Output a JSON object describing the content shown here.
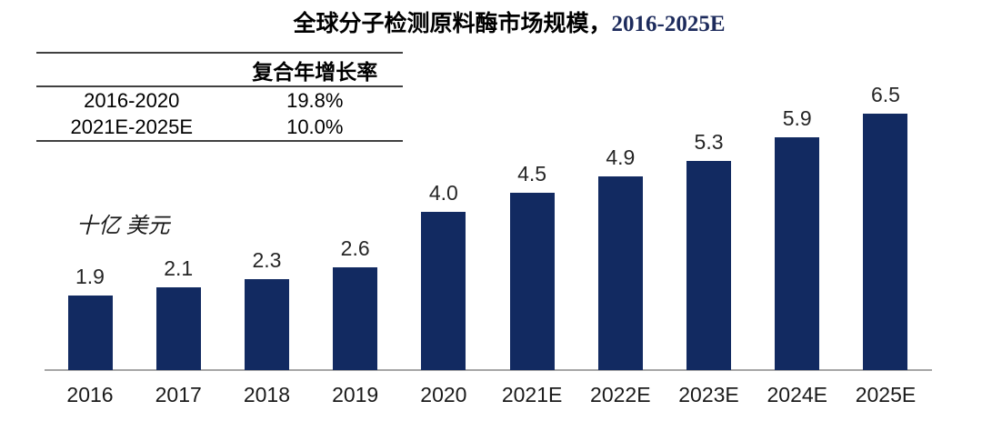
{
  "title": {
    "text_cn": "全球分子检测原料酶市场规模，",
    "text_year": "2016-2025E"
  },
  "cagr_table": {
    "header": [
      "",
      "复合年增长率"
    ],
    "rows": [
      [
        "2016-2020",
        "19.8%"
      ],
      [
        "2021E-2025E",
        "10.0%"
      ]
    ]
  },
  "unit_label": "十亿 美元",
  "chart_data": {
    "type": "bar",
    "title": "全球分子检测原料酶市场规模，2016-2025E",
    "ylabel": "十亿 美元",
    "xlabel": "",
    "categories": [
      "2016",
      "2017",
      "2018",
      "2019",
      "2020",
      "2021E",
      "2022E",
      "2023E",
      "2024E",
      "2025E"
    ],
    "values": [
      1.9,
      2.1,
      2.3,
      2.6,
      4.0,
      4.5,
      4.9,
      5.3,
      5.9,
      6.5
    ],
    "data_labels": [
      "1.9",
      "2.1",
      "2.3",
      "2.6",
      "4.0",
      "4.5",
      "4.9",
      "5.3",
      "5.9",
      "6.5"
    ],
    "ylim": [
      0,
      7
    ],
    "grid": false,
    "legend": "none",
    "bar_color": "#122a61",
    "axis_color": "#a6a6a6"
  },
  "cagr_annotations": {
    "period_1": "2016-2020",
    "rate_1": "19.8%",
    "period_2": "2021E-2025E",
    "rate_2": "10.0%"
  }
}
